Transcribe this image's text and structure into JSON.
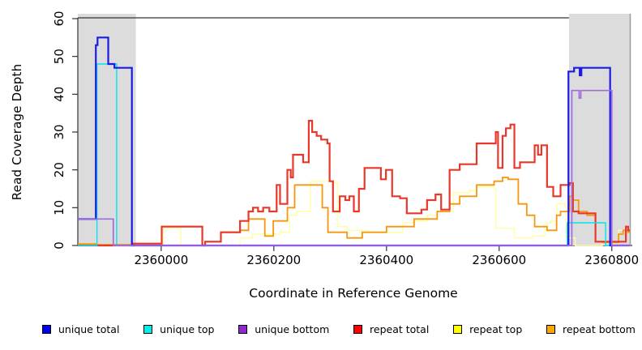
{
  "chart_data": {
    "type": "line",
    "title": "",
    "xlabel": "Coordinate in Reference Genome",
    "ylabel": "Read Coverage Depth",
    "xlim": [
      2359852,
      2360832
    ],
    "ylim": [
      0,
      60
    ],
    "x_ticks": [
      2360000,
      2360200,
      2360400,
      2360600,
      2360800
    ],
    "y_ticks": [
      0,
      10,
      20,
      30,
      40,
      50,
      60
    ],
    "grid": false,
    "legend_position": "bottom",
    "step_interpolation": true,
    "shaded_regions": [
      {
        "name": "left-gray-band",
        "x0": 2359852,
        "x1": 2359955,
        "color": "#dcdcdc"
      },
      {
        "name": "right-gray-band",
        "x0": 2360724,
        "x1": 2360832,
        "color": "#dcdcdc"
      }
    ],
    "series": [
      {
        "name": "unique total",
        "color": "#1b1be4",
        "legend_color": "#0000ee",
        "width": 2.2,
        "points": [
          [
            2359852,
            7
          ],
          [
            2359884,
            53
          ],
          [
            2359887,
            55
          ],
          [
            2359906,
            48
          ],
          [
            2359917,
            47
          ],
          [
            2359948,
            0
          ],
          [
            2360723,
            46
          ],
          [
            2360733,
            47
          ],
          [
            2360743,
            45
          ],
          [
            2360746,
            47
          ],
          [
            2360797,
            0
          ],
          [
            2360832,
            0
          ]
        ]
      },
      {
        "name": "unique top",
        "color": "#00e5ee",
        "legend_color": "#00eeee",
        "width": 1.4,
        "points": [
          [
            2359852,
            0
          ],
          [
            2359886,
            48
          ],
          [
            2359921,
            0
          ],
          [
            2360721,
            6
          ],
          [
            2360789,
            0
          ],
          [
            2360832,
            0
          ]
        ]
      },
      {
        "name": "unique bottom",
        "color": "#a26bdd",
        "legend_color": "#9326cc",
        "width": 1.7,
        "points": [
          [
            2359852,
            7
          ],
          [
            2359915,
            0
          ],
          [
            2360729,
            41
          ],
          [
            2360742,
            39
          ],
          [
            2360745,
            41
          ],
          [
            2360800,
            0
          ],
          [
            2360832,
            0
          ]
        ]
      },
      {
        "name": "repeat total",
        "color": "#e8372b",
        "legend_color": "#ff0000",
        "width": 2.2,
        "points": [
          [
            2359852,
            0
          ],
          [
            2359950,
            0.5
          ],
          [
            2360001,
            5
          ],
          [
            2360073,
            0
          ],
          [
            2360078,
            1
          ],
          [
            2360106,
            3.5
          ],
          [
            2360140,
            6.5
          ],
          [
            2360155,
            9
          ],
          [
            2360163,
            10
          ],
          [
            2360172,
            9
          ],
          [
            2360181,
            10
          ],
          [
            2360192,
            9
          ],
          [
            2360205,
            16
          ],
          [
            2360211,
            11
          ],
          [
            2360224,
            20
          ],
          [
            2360230,
            18
          ],
          [
            2360234,
            24
          ],
          [
            2360252,
            22
          ],
          [
            2360262,
            33
          ],
          [
            2360268,
            30
          ],
          [
            2360276,
            29
          ],
          [
            2360284,
            28
          ],
          [
            2360295,
            27
          ],
          [
            2360299,
            17
          ],
          [
            2360305,
            9
          ],
          [
            2360317,
            13
          ],
          [
            2360327,
            12
          ],
          [
            2360334,
            13
          ],
          [
            2360342,
            9
          ],
          [
            2360351,
            15
          ],
          [
            2360361,
            20.5
          ],
          [
            2360390,
            17.5
          ],
          [
            2360399,
            20
          ],
          [
            2360410,
            13
          ],
          [
            2360424,
            12.5
          ],
          [
            2360436,
            8.5
          ],
          [
            2360462,
            9.5
          ],
          [
            2360472,
            12
          ],
          [
            2360487,
            13.5
          ],
          [
            2360497,
            9.5
          ],
          [
            2360512,
            20
          ],
          [
            2360530,
            21.5
          ],
          [
            2360560,
            27
          ],
          [
            2360594,
            30
          ],
          [
            2360598,
            20.5
          ],
          [
            2360606,
            29
          ],
          [
            2360612,
            31
          ],
          [
            2360620,
            32
          ],
          [
            2360627,
            20.5
          ],
          [
            2360637,
            22
          ],
          [
            2360663,
            26.5
          ],
          [
            2360669,
            24
          ],
          [
            2360675,
            26.5
          ],
          [
            2360685,
            15.5
          ],
          [
            2360696,
            13
          ],
          [
            2360709,
            16
          ],
          [
            2360725,
            16.5
          ],
          [
            2360731,
            9
          ],
          [
            2360741,
            8.5
          ],
          [
            2360771,
            1
          ],
          [
            2360804,
            1
          ],
          [
            2360825,
            5
          ],
          [
            2360829,
            4
          ],
          [
            2360832,
            4
          ]
        ]
      },
      {
        "name": "repeat top",
        "color": "#ffff9e",
        "legend_color": "#ffff00",
        "width": 1.3,
        "points": [
          [
            2359852,
            0
          ],
          [
            2360004,
            4.5
          ],
          [
            2360035,
            0
          ],
          [
            2360140,
            2
          ],
          [
            2360162,
            3
          ],
          [
            2360210,
            3.5
          ],
          [
            2360228,
            8
          ],
          [
            2360240,
            9
          ],
          [
            2360265,
            17
          ],
          [
            2360308,
            16.5
          ],
          [
            2360313,
            5
          ],
          [
            2360330,
            4
          ],
          [
            2360368,
            3.5
          ],
          [
            2360429,
            6
          ],
          [
            2360449,
            6.5
          ],
          [
            2360472,
            8
          ],
          [
            2360490,
            9
          ],
          [
            2360519,
            14
          ],
          [
            2360548,
            14.5
          ],
          [
            2360560,
            15.5
          ],
          [
            2360591,
            15
          ],
          [
            2360594,
            4.6
          ],
          [
            2360616,
            4.5
          ],
          [
            2360627,
            2
          ],
          [
            2360659,
            2.5
          ],
          [
            2360681,
            6
          ],
          [
            2360692,
            6.5
          ],
          [
            2360702,
            11
          ],
          [
            2360716,
            10.5
          ],
          [
            2360719,
            2
          ],
          [
            2360735,
            0
          ],
          [
            2360783,
            0.8
          ],
          [
            2360804,
            0
          ],
          [
            2360812,
            4
          ],
          [
            2360829,
            3.5
          ],
          [
            2360832,
            3.5
          ]
        ]
      },
      {
        "name": "repeat bottom",
        "color": "#f5980f",
        "legend_color": "#ffa500",
        "width": 1.8,
        "points": [
          [
            2359852,
            0.4
          ],
          [
            2359884,
            0.2
          ],
          [
            2359950,
            0.5
          ],
          [
            2360001,
            5
          ],
          [
            2360073,
            0
          ],
          [
            2360078,
            1
          ],
          [
            2360106,
            3.5
          ],
          [
            2360140,
            4
          ],
          [
            2360155,
            7
          ],
          [
            2360184,
            2.5
          ],
          [
            2360199,
            6.5
          ],
          [
            2360224,
            10
          ],
          [
            2360237,
            16
          ],
          [
            2360286,
            10
          ],
          [
            2360296,
            3.5
          ],
          [
            2360330,
            2
          ],
          [
            2360357,
            3.5
          ],
          [
            2360400,
            5
          ],
          [
            2360449,
            7
          ],
          [
            2360490,
            9
          ],
          [
            2360512,
            11
          ],
          [
            2360530,
            13
          ],
          [
            2360560,
            16
          ],
          [
            2360591,
            17
          ],
          [
            2360606,
            18
          ],
          [
            2360616,
            17.5
          ],
          [
            2360634,
            11
          ],
          [
            2360649,
            8
          ],
          [
            2360663,
            5
          ],
          [
            2360685,
            4
          ],
          [
            2360702,
            8
          ],
          [
            2360709,
            9
          ],
          [
            2360725,
            13
          ],
          [
            2360731,
            12
          ],
          [
            2360741,
            9
          ],
          [
            2360756,
            8
          ],
          [
            2360771,
            1
          ],
          [
            2360783,
            0.8
          ],
          [
            2360812,
            3
          ],
          [
            2360820,
            4
          ],
          [
            2360829,
            3.5
          ],
          [
            2360832,
            3.5
          ]
        ]
      }
    ]
  }
}
